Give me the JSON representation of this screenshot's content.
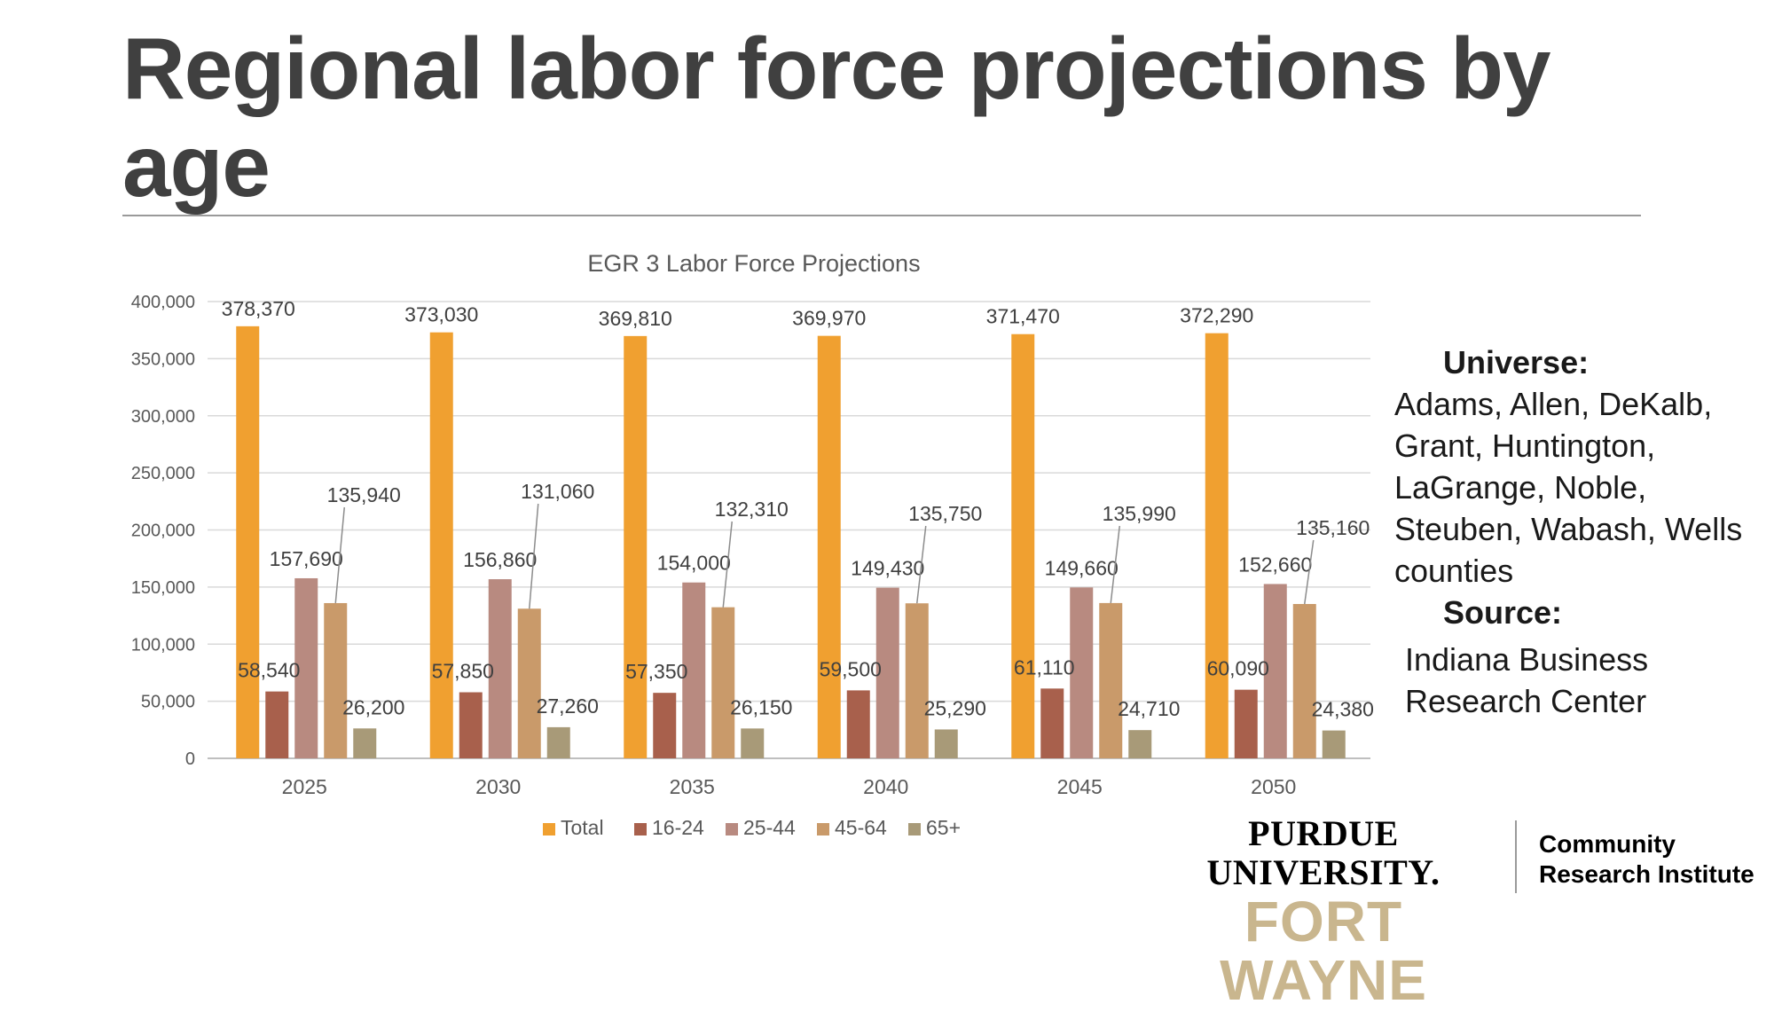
{
  "slide": {
    "title": "Regional labor force projections by age"
  },
  "sidebar": {
    "universe_label": "Universe:",
    "universe_lines": [
      "Adams, Allen, DeKalb,",
      "Grant, Huntington,",
      "LaGrange, Noble,",
      "Steuben, Wabash, Wells",
      "counties"
    ],
    "source_label": "Source:",
    "source_lines": [
      "Indiana Business",
      "Research Center"
    ]
  },
  "logo": {
    "university": "PURDUE UNIVERSITY.",
    "campus": "FORT WAYNE",
    "institute_lines": [
      "Community",
      "Research Institute"
    ]
  },
  "chart_data": {
    "type": "bar",
    "title": "EGR 3 Labor Force Projections",
    "categories": [
      "2025",
      "2030",
      "2035",
      "2040",
      "2045",
      "2050"
    ],
    "series": [
      {
        "name": "Total",
        "color": "#f0a030",
        "values": [
          378370,
          373030,
          369810,
          369970,
          371470,
          372290
        ],
        "labels": [
          "378,370",
          "373,030",
          "369,810",
          "369,970",
          "371,470",
          "372,290"
        ]
      },
      {
        "name": "16-24",
        "color": "#a8604c",
        "values": [
          58540,
          57850,
          57350,
          59500,
          61110,
          60090
        ],
        "labels": [
          "58,540",
          "57,850",
          "57,350",
          "59,500",
          "61,110",
          "60,090"
        ]
      },
      {
        "name": "25-44",
        "color": "#b88a80",
        "values": [
          157690,
          156860,
          154000,
          149430,
          149660,
          152660
        ],
        "labels": [
          "157,690",
          "156,860",
          "154,000",
          "149,430",
          "149,660",
          "152,660"
        ]
      },
      {
        "name": "45-64",
        "color": "#c99a6a",
        "values": [
          135940,
          131060,
          132310,
          135750,
          135990,
          135160
        ],
        "labels": [
          "135,940",
          "131,060",
          "132,310",
          "135,750",
          "135,990",
          "135,160"
        ]
      },
      {
        "name": "65+",
        "color": "#a89a78",
        "values": [
          26200,
          27260,
          26150,
          25290,
          24710,
          24380
        ],
        "labels": [
          "26,200",
          "27,260",
          "26,150",
          "25,290",
          "24,710",
          "24,380"
        ]
      }
    ],
    "ylim": [
      0,
      400000
    ],
    "yticks": [
      0,
      50000,
      100000,
      150000,
      200000,
      250000,
      300000,
      350000,
      400000
    ],
    "ytick_labels": [
      "0",
      "50,000",
      "100,000",
      "150,000",
      "200,000",
      "250,000",
      "300,000",
      "350,000",
      "400,000"
    ],
    "grid": true,
    "legend_position": "bottom"
  }
}
